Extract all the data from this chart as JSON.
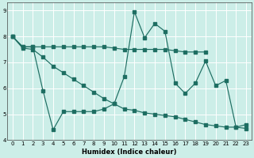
{
  "xlabel": "Humidex (Indice chaleur)",
  "bg_color": "#cceee8",
  "line_color": "#1e6e62",
  "grid_color": "#ffffff",
  "xlim": [
    0,
    23
  ],
  "ylim": [
    4,
    9.3
  ],
  "yticks": [
    4,
    5,
    6,
    7,
    8,
    9
  ],
  "xticks": [
    0,
    1,
    2,
    3,
    4,
    5,
    6,
    7,
    8,
    9,
    10,
    11,
    12,
    13,
    14,
    15,
    16,
    17,
    18,
    19,
    20,
    21,
    22,
    23
  ],
  "line1_x": [
    0,
    1,
    2,
    3,
    4,
    5,
    6,
    7,
    8,
    9,
    10,
    11,
    12,
    13,
    14,
    15,
    16,
    17,
    18,
    19
  ],
  "line1_y": [
    8.0,
    7.6,
    7.6,
    7.6,
    7.6,
    7.6,
    7.6,
    7.6,
    7.6,
    7.6,
    7.55,
    7.5,
    7.5,
    7.5,
    7.5,
    7.5,
    7.45,
    7.4,
    7.4,
    7.4
  ],
  "line2_x": [
    0,
    1,
    2,
    3,
    4,
    5,
    6,
    7,
    8,
    9,
    10,
    11,
    12,
    13,
    14,
    15,
    16,
    17,
    18,
    19,
    20,
    21,
    22,
    23
  ],
  "line2_y": [
    8.0,
    7.6,
    7.6,
    5.9,
    4.4,
    5.1,
    5.1,
    5.1,
    5.1,
    5.2,
    5.4,
    6.45,
    8.95,
    7.95,
    8.5,
    8.2,
    6.2,
    5.8,
    6.2,
    7.05,
    6.1,
    6.3,
    4.5,
    4.6
  ],
  "line3_x": [
    0,
    1,
    2,
    3,
    4,
    5,
    6,
    7,
    8,
    9,
    10,
    11,
    12,
    13,
    14,
    15,
    16,
    17,
    18,
    19,
    20,
    21,
    22,
    23
  ],
  "line3_y": [
    8.0,
    7.55,
    7.5,
    7.2,
    6.85,
    6.6,
    6.35,
    6.1,
    5.85,
    5.6,
    5.4,
    5.2,
    5.15,
    5.05,
    5.0,
    4.95,
    4.9,
    4.8,
    4.7,
    4.6,
    4.55,
    4.5,
    4.5,
    4.45
  ]
}
